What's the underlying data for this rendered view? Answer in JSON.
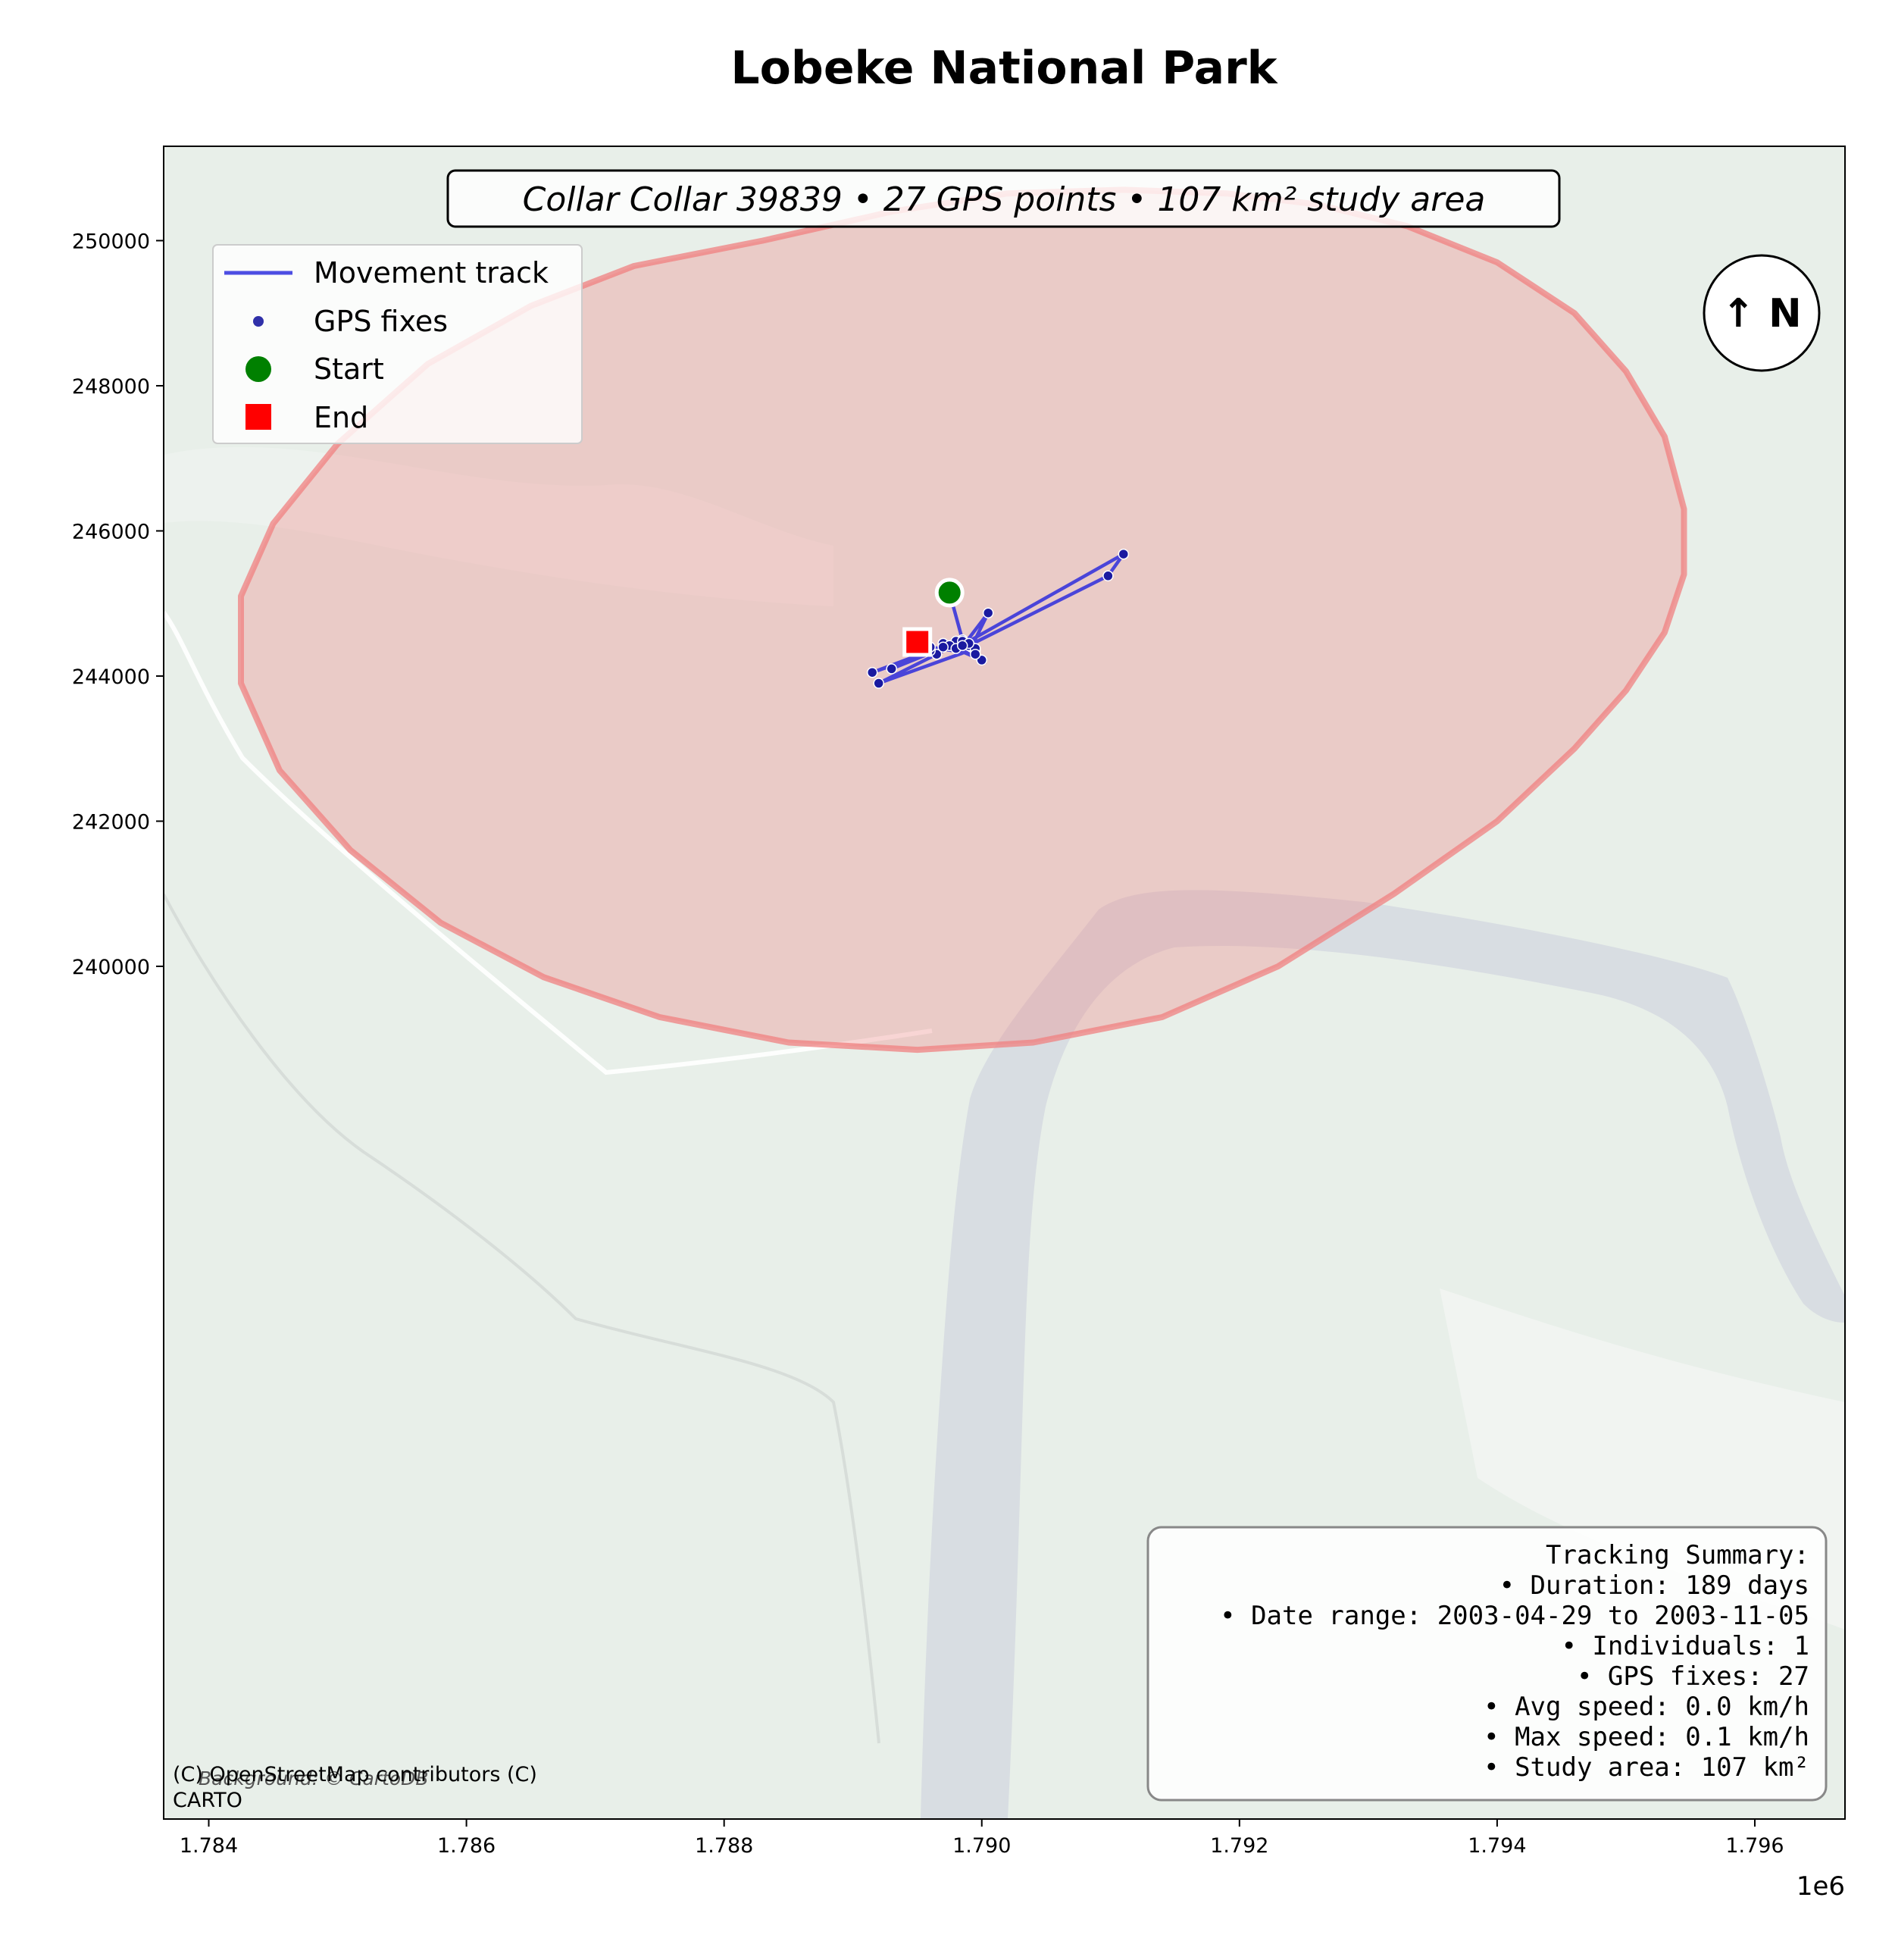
{
  "title": "Lobeke National Park",
  "subtitle": "Collar Collar 39839 • 27 GPS points • 107 km² study area",
  "north_arrow": "↑ N",
  "axis": {
    "x_ticks": [
      "1.784",
      "1.786",
      "1.788",
      "1.790",
      "1.792",
      "1.794",
      "1.796"
    ],
    "x_multiplier": "1e6",
    "y_ticks": [
      "240000",
      "242000",
      "244000",
      "246000",
      "248000",
      "250000"
    ]
  },
  "legend": {
    "track": "Movement track",
    "fixes": "GPS fixes",
    "start": "Start",
    "end": "End"
  },
  "summary": {
    "heading": "Tracking Summary:",
    "lines": [
      "• Duration: 189 days",
      "• Date range: 2003-04-29 to 2003-11-05",
      "• Individuals: 1",
      "• GPS fixes: 27",
      "• Avg speed: 0.0 km/h",
      "• Max speed: 0.1 km/h",
      "• Study area: 107 km²"
    ]
  },
  "attribution": {
    "line1": "(C) OpenStreetMap contributors (C)",
    "line2": "CARTO",
    "background": "Background: © CartoDB"
  },
  "colors": {
    "track": "#2222dd",
    "fixes": "#1a1aa0",
    "start": "#008000",
    "end": "#ff0000",
    "study_area": "#f08080",
    "map_bg": "#e8efe9",
    "river": "#d8dde2"
  },
  "chart_data": {
    "type": "scatter",
    "x_unit_multiplier": 1000000,
    "xlim": [
      1783650,
      1796700
    ],
    "ylim": [
      228250,
      251300
    ],
    "track": [
      [
        1789750,
        245150
      ],
      [
        1789850,
        244500
      ],
      [
        1789800,
        244480
      ],
      [
        1789920,
        244400
      ],
      [
        1790050,
        244870
      ],
      [
        1789870,
        244450
      ],
      [
        1791100,
        245680
      ],
      [
        1790980,
        245380
      ],
      [
        1789900,
        244420
      ],
      [
        1789950,
        244350
      ],
      [
        1790000,
        244220
      ],
      [
        1789700,
        244450
      ],
      [
        1789950,
        244380
      ],
      [
        1789200,
        243900
      ],
      [
        1789650,
        244300
      ],
      [
        1789850,
        244480
      ],
      [
        1789150,
        244050
      ],
      [
        1789600,
        244350
      ],
      [
        1789300,
        244100
      ],
      [
        1789750,
        244420
      ],
      [
        1789800,
        244380
      ],
      [
        1789900,
        244450
      ],
      [
        1789700,
        244400
      ],
      [
        1789850,
        244420
      ],
      [
        1789950,
        244300
      ],
      [
        1789600,
        244400
      ],
      [
        1789500,
        244470
      ]
    ],
    "start": [
      1789750,
      245150
    ],
    "end": [
      1789500,
      244470
    ],
    "study_area_center": [
      1790250,
      244050
    ],
    "study_area": [
      [
        1791100,
        250700
      ],
      [
        1791900,
        250650
      ],
      [
        1792600,
        250500
      ],
      [
        1793300,
        250200
      ],
      [
        1794000,
        249700
      ],
      [
        1794600,
        249000
      ],
      [
        1795000,
        248200
      ],
      [
        1795300,
        247300
      ],
      [
        1795450,
        246300
      ],
      [
        1795450,
        245400
      ],
      [
        1795300,
        244600
      ],
      [
        1795000,
        243800
      ],
      [
        1794600,
        243000
      ],
      [
        1794000,
        242000
      ],
      [
        1793200,
        241000
      ],
      [
        1792300,
        240000
      ],
      [
        1791400,
        239300
      ],
      [
        1790400,
        238950
      ],
      [
        1789500,
        238850
      ],
      [
        1788500,
        238950
      ],
      [
        1787500,
        239300
      ],
      [
        1786600,
        239850
      ],
      [
        1785800,
        240600
      ],
      [
        1785100,
        241600
      ],
      [
        1784550,
        242700
      ],
      [
        1784250,
        243900
      ],
      [
        1784250,
        245100
      ],
      [
        1784500,
        246100
      ],
      [
        1785000,
        247200
      ],
      [
        1785700,
        248300
      ],
      [
        1786500,
        249100
      ],
      [
        1787300,
        249650
      ],
      [
        1788300,
        250000
      ],
      [
        1789300,
        250400
      ],
      [
        1790200,
        250650
      ]
    ]
  }
}
